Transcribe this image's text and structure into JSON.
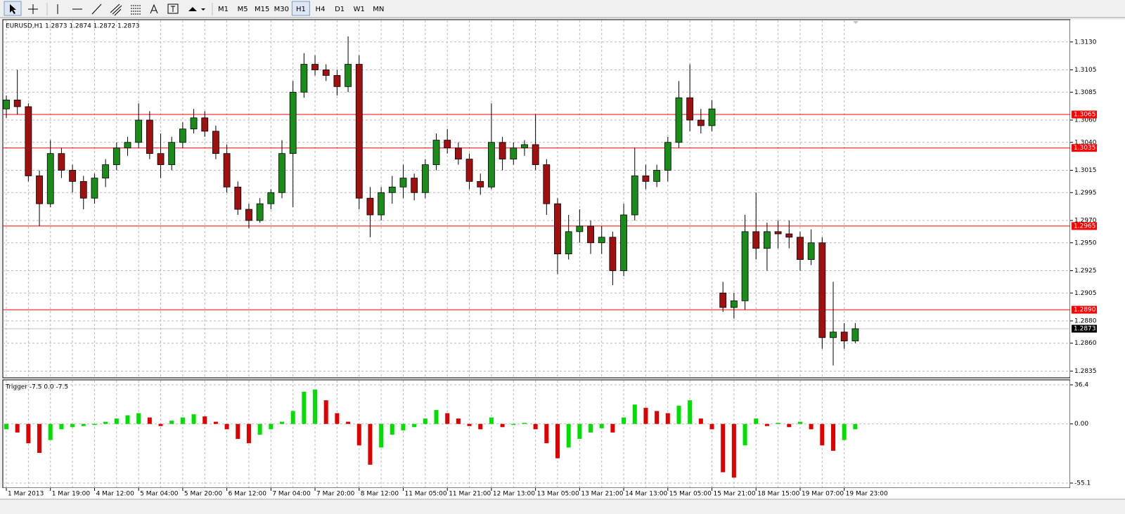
{
  "toolbar": {
    "timeframes": [
      "M1",
      "M5",
      "M15",
      "M30",
      "H1",
      "H4",
      "D1",
      "W1",
      "MN"
    ],
    "active_index": 4
  },
  "chart_data": [
    {
      "type": "candlestick",
      "title": "EURUSD,H1  1.2873 1.2874 1.2872 1.2873",
      "categories": [
        "1 Mar 2013",
        null,
        null,
        null,
        "1 Mar 19:00",
        null,
        null,
        null,
        "4 Mar 12:00",
        null,
        null,
        null,
        "5 Mar 04:00",
        null,
        null,
        null,
        "5 Mar 20:00",
        null,
        null,
        null,
        "6 Mar 12:00",
        null,
        null,
        null,
        "7 Mar 04:00",
        null,
        null,
        null,
        "7 Mar 20:00",
        null,
        null,
        null,
        "8 Mar 12:00",
        null,
        null,
        null,
        "11 Mar 05:00",
        null,
        null,
        null,
        "11 Mar 21:00",
        null,
        null,
        null,
        "12 Mar 13:00",
        null,
        null,
        null,
        "13 Mar 05:00",
        null,
        null,
        null,
        "13 Mar 21:00",
        null,
        null,
        null,
        "14 Mar 13:00",
        null,
        null,
        null,
        "15 Mar 05:00",
        null,
        null,
        null,
        "15 Mar 21:00",
        null,
        null,
        null,
        "18 Mar 15:00",
        null,
        null,
        null,
        "19 Mar 07:00",
        null,
        null,
        null,
        "19 Mar 23:00",
        null
      ],
      "open": [
        1.307,
        1.3078,
        1.3072,
        1.301,
        1.2985,
        1.303,
        1.3015,
        1.3005,
        1.299,
        1.3008,
        1.302,
        1.3035,
        1.304,
        1.306,
        1.303,
        1.302,
        1.304,
        1.3052,
        1.3062,
        1.305,
        1.303,
        1.3,
        1.298,
        1.297,
        1.2985,
        1.2995,
        1.303,
        1.3085,
        1.311,
        1.3105,
        1.31,
        1.309,
        1.311,
        1.299,
        1.2975,
        1.2995,
        1.3,
        1.3008,
        1.2995,
        1.302,
        1.3042,
        1.3035,
        1.3025,
        1.3005,
        1.3,
        1.304,
        1.3025,
        1.3035,
        1.3038,
        1.302,
        1.2985,
        1.294,
        1.296,
        1.2965,
        1.295,
        1.2955,
        1.2925,
        1.2975,
        1.301,
        1.3005,
        1.3015,
        1.304,
        1.308,
        1.306,
        1.3055,
        1.2905,
        1.2892,
        1.2898,
        1.296,
        1.2945,
        1.296,
        1.2958,
        1.2955,
        1.2935,
        1.295,
        1.2865,
        1.287,
        1.2862
      ],
      "high": [
        1.3082,
        1.3105,
        1.3075,
        1.3015,
        1.3042,
        1.3035,
        1.302,
        1.301,
        1.3012,
        1.3025,
        1.304,
        1.3045,
        1.3075,
        1.3068,
        1.3048,
        1.3045,
        1.3058,
        1.307,
        1.3068,
        1.3055,
        1.3038,
        1.3005,
        1.2985,
        1.299,
        1.2998,
        1.3042,
        1.3095,
        1.312,
        1.3118,
        1.311,
        1.3105,
        1.3135,
        1.3118,
        1.3,
        1.3,
        1.301,
        1.302,
        1.3012,
        1.3025,
        1.3048,
        1.3052,
        1.304,
        1.303,
        1.3012,
        1.3075,
        1.3045,
        1.304,
        1.3042,
        1.3065,
        1.3025,
        1.299,
        1.2975,
        1.298,
        1.297,
        1.2965,
        1.296,
        1.2985,
        1.3035,
        1.302,
        1.302,
        1.3045,
        1.3095,
        1.311,
        1.307,
        1.3078,
        1.2915,
        1.2905,
        1.2975,
        1.2995,
        1.2968,
        1.297,
        1.297,
        1.296,
        1.2962,
        1.2955,
        1.2915,
        1.2878,
        1.2878
      ],
      "low": [
        1.3062,
        1.3065,
        1.3005,
        1.2965,
        1.2982,
        1.3008,
        1.2995,
        1.298,
        1.2985,
        1.3,
        1.3015,
        1.3028,
        1.3035,
        1.3025,
        1.3008,
        1.3015,
        1.3035,
        1.3048,
        1.3045,
        1.3025,
        1.2995,
        1.2975,
        1.2963,
        1.2968,
        1.298,
        1.299,
        1.2982,
        1.308,
        1.31,
        1.3095,
        1.3082,
        1.3085,
        1.298,
        1.2955,
        1.297,
        1.2985,
        1.299,
        1.2988,
        1.299,
        1.3015,
        1.303,
        1.302,
        1.2998,
        1.2993,
        1.2998,
        1.3015,
        1.302,
        1.3028,
        1.3015,
        1.2975,
        1.2922,
        1.2935,
        1.295,
        1.294,
        1.294,
        1.2912,
        1.292,
        1.297,
        1.2998,
        1.3,
        1.3005,
        1.3035,
        1.305,
        1.3048,
        1.305,
        1.2888,
        1.2882,
        1.289,
        1.2935,
        1.2925,
        1.2945,
        1.2945,
        1.2925,
        1.293,
        1.2855,
        1.284,
        1.2855,
        1.286
      ],
      "close": [
        1.3078,
        1.3072,
        1.301,
        1.2985,
        1.303,
        1.3015,
        1.3005,
        1.299,
        1.3008,
        1.302,
        1.3035,
        1.304,
        1.306,
        1.303,
        1.302,
        1.304,
        1.3052,
        1.3062,
        1.305,
        1.303,
        1.3,
        1.298,
        1.297,
        1.2985,
        1.2995,
        1.303,
        1.3085,
        1.311,
        1.3105,
        1.31,
        1.309,
        1.311,
        1.299,
        1.2975,
        1.2995,
        1.3,
        1.3008,
        1.2995,
        1.302,
        1.3042,
        1.3035,
        1.3025,
        1.3005,
        1.3,
        1.304,
        1.3025,
        1.3035,
        1.3038,
        1.302,
        1.2985,
        1.294,
        1.296,
        1.2965,
        1.295,
        1.2955,
        1.2925,
        1.2975,
        1.301,
        1.3005,
        1.3015,
        1.304,
        1.308,
        1.306,
        1.3055,
        1.307,
        1.2892,
        1.2898,
        1.296,
        1.2945,
        1.296,
        1.2958,
        1.2955,
        1.2935,
        1.295,
        1.2865,
        1.287,
        1.2862,
        1.2873
      ],
      "up_color": "#1a8c1a",
      "down_color": "#a01010",
      "wick_color": "#000000",
      "ylim": [
        1.2829,
        1.315
      ],
      "yticks": [
        {
          "value": 1.313,
          "label": "1.3130"
        },
        1.3105,
        1.3085,
        {
          "value": 1.306,
          "label": "1.3060"
        },
        {
          "value": 1.304,
          "label": "1.3040"
        },
        1.3015,
        1.2995,
        {
          "value": 1.297,
          "label": "1.2970"
        },
        {
          "value": 1.295,
          "label": "1.2950"
        },
        1.2925,
        1.2905,
        {
          "value": 1.288,
          "label": "1.2880"
        },
        {
          "value": 1.286,
          "label": "1.2860"
        },
        1.2835
      ],
      "levels": [
        1.3065,
        1.3035,
        1.2965,
        {
          "value": 1.289,
          "label": "1.2890"
        }
      ],
      "level_color": "#ff0000",
      "last_price": 1.2873,
      "grid": true
    },
    {
      "type": "bar",
      "title": "Trigger -7.5 0.0 -7.5",
      "values": [
        -5,
        -8,
        -18,
        -27,
        -15,
        -5,
        -3,
        -2,
        -1,
        2,
        5,
        8,
        10,
        6,
        -2,
        3,
        6,
        9,
        7,
        2,
        -5,
        -14,
        -18,
        -10,
        -5,
        2,
        12,
        30,
        32,
        22,
        10,
        2,
        -20,
        -38,
        -22,
        -10,
        -6,
        -3,
        5,
        13,
        10,
        5,
        -2,
        -5,
        6,
        -3,
        -1,
        1,
        -5,
        -18,
        -32,
        -22,
        -14,
        -8,
        -4,
        -8,
        6,
        18,
        15,
        12,
        10,
        17,
        22,
        5,
        -5,
        -45,
        -50,
        -20,
        5,
        -2,
        1,
        -3,
        2,
        -5,
        -20,
        -25,
        -15,
        -5
      ],
      "up_color": "#00e000",
      "down_color": "#e00000",
      "ylim": [
        -59.7,
        41
      ],
      "yticks": [
        36.4,
        {
          "value": 0,
          "label": "0.00"
        },
        -55.1
      ],
      "grid": true
    }
  ]
}
